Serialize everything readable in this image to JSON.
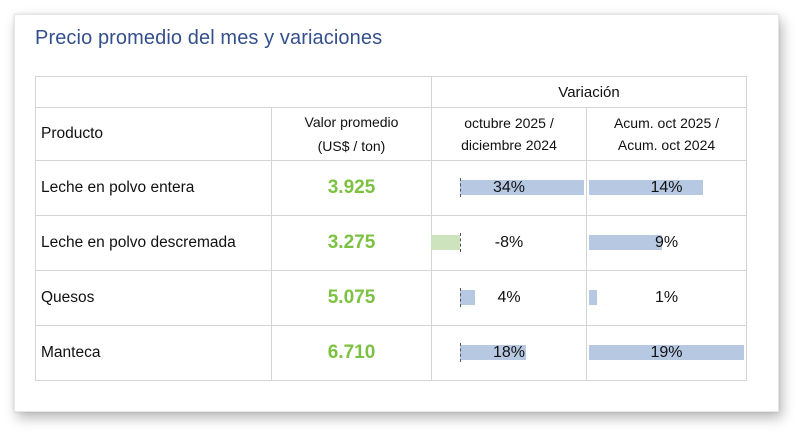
{
  "title": "Precio promedio del mes y variaciones",
  "header": {
    "variacion": "Variación",
    "producto": "Producto",
    "valor_line1": "Valor promedio",
    "valor_line2": "(US$ / ton)",
    "col1_line1": "octubre 2025 /",
    "col1_line2": "diciembre 2024",
    "col2_line1": "Acum. oct 2025 /",
    "col2_line2": "Acum. oct 2024"
  },
  "colors": {
    "title": "#34508c",
    "value": "#7dc143",
    "positive_bar": "#b7c9e2",
    "negative_bar": "#cde3bd"
  },
  "rows": [
    {
      "producto": "Leche en polvo entera",
      "valor": "3.925",
      "var1_label": "34%",
      "var1": 34,
      "var2_label": "14%",
      "var2": 14
    },
    {
      "producto": "Leche en polvo descremada",
      "valor": "3.275",
      "var1_label": "-8%",
      "var1": -8,
      "var2_label": "9%",
      "var2": 9
    },
    {
      "producto": "Quesos",
      "valor": "5.075",
      "var1_label": "4%",
      "var1": 4,
      "var2_label": "1%",
      "var2": 1
    },
    {
      "producto": "Manteca",
      "valor": "6.710",
      "var1_label": "18%",
      "var1": 18,
      "var2_label": "19%",
      "var2": 19
    }
  ]
}
